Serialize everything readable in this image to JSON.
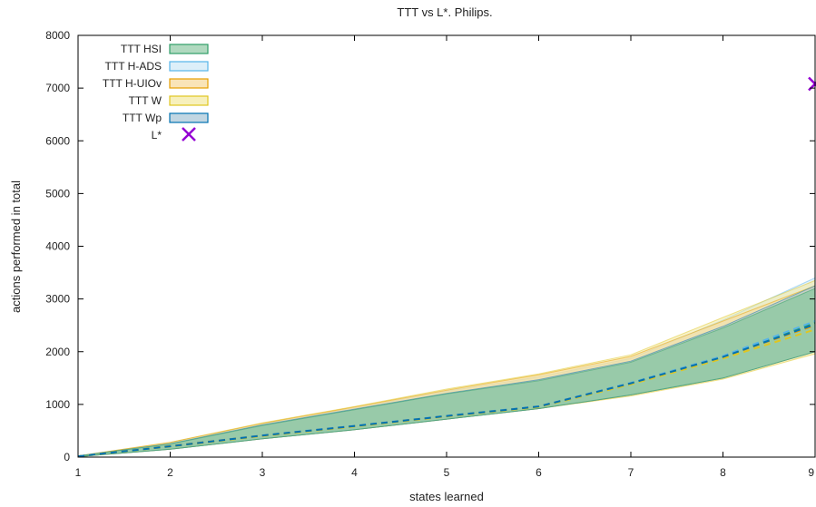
{
  "chart_data": {
    "type": "area",
    "title": "TTT vs L*. Philips.",
    "xlabel": "states learned",
    "ylabel": "actions performed in total",
    "xlim": [
      1,
      9
    ],
    "ylim": [
      0,
      8000
    ],
    "x_ticks": [
      "1",
      "2",
      "3",
      "4",
      "5",
      "6",
      "7",
      "8",
      "9"
    ],
    "y_ticks": [
      "0",
      "1000",
      "2000",
      "3000",
      "4000",
      "5000",
      "6000",
      "7000",
      "8000"
    ],
    "grid": false,
    "legend_position": "top-left",
    "x": [
      1,
      2,
      3,
      4,
      5,
      6,
      7,
      8,
      9
    ],
    "series": [
      {
        "name": "TTT HSI",
        "color": "#2e9e68",
        "fill": "#8fc9a4",
        "upper": [
          20,
          250,
          600,
          900,
          1200,
          1450,
          1800,
          2450,
          3200
        ],
        "lower": [
          10,
          150,
          350,
          520,
          720,
          920,
          1180,
          1500,
          2000
        ],
        "mean": [
          15,
          205,
          410,
          590,
          780,
          960,
          1400,
          1900,
          2550
        ]
      },
      {
        "name": "TTT H-ADS",
        "color": "#56b4e9",
        "fill": "#cfe8f7",
        "upper": [
          22,
          270,
          630,
          930,
          1250,
          1520,
          1870,
          2600,
          3400
        ],
        "lower": [
          10,
          150,
          350,
          520,
          720,
          920,
          1190,
          1520,
          2050
        ],
        "mean": [
          15,
          210,
          415,
          595,
          785,
          965,
          1410,
          1920,
          2580
        ]
      },
      {
        "name": "TTT H-UIOv",
        "color": "#e69f00",
        "fill": "#f6d89a",
        "upper": [
          22,
          280,
          640,
          950,
          1270,
          1560,
          1910,
          2580,
          3250
        ],
        "lower": [
          10,
          150,
          350,
          520,
          720,
          920,
          1180,
          1500,
          2000
        ],
        "mean": [
          15,
          210,
          410,
          590,
          780,
          960,
          1400,
          1900,
          2500
        ]
      },
      {
        "name": "TTT W",
        "color": "#e0c620",
        "fill": "#f3eaa0",
        "upper": [
          22,
          280,
          650,
          960,
          1290,
          1580,
          1940,
          2650,
          3350
        ],
        "lower": [
          10,
          150,
          350,
          520,
          720,
          920,
          1160,
          1480,
          1960
        ],
        "mean": [
          15,
          200,
          400,
          580,
          770,
          950,
          1380,
          1870,
          2420
        ]
      },
      {
        "name": "TTT Wp",
        "color": "#0072b2",
        "fill": "#a6c4d6",
        "upper": [
          20,
          255,
          610,
          910,
          1210,
          1470,
          1820,
          2480,
          3250
        ],
        "lower": [
          10,
          150,
          350,
          520,
          720,
          920,
          1180,
          1500,
          2000
        ],
        "mean": [
          15,
          205,
          410,
          590,
          780,
          960,
          1400,
          1900,
          2520
        ]
      }
    ],
    "points": [
      {
        "name": "L*",
        "color": "#9400d3",
        "x": 9,
        "y": 7080
      }
    ]
  }
}
